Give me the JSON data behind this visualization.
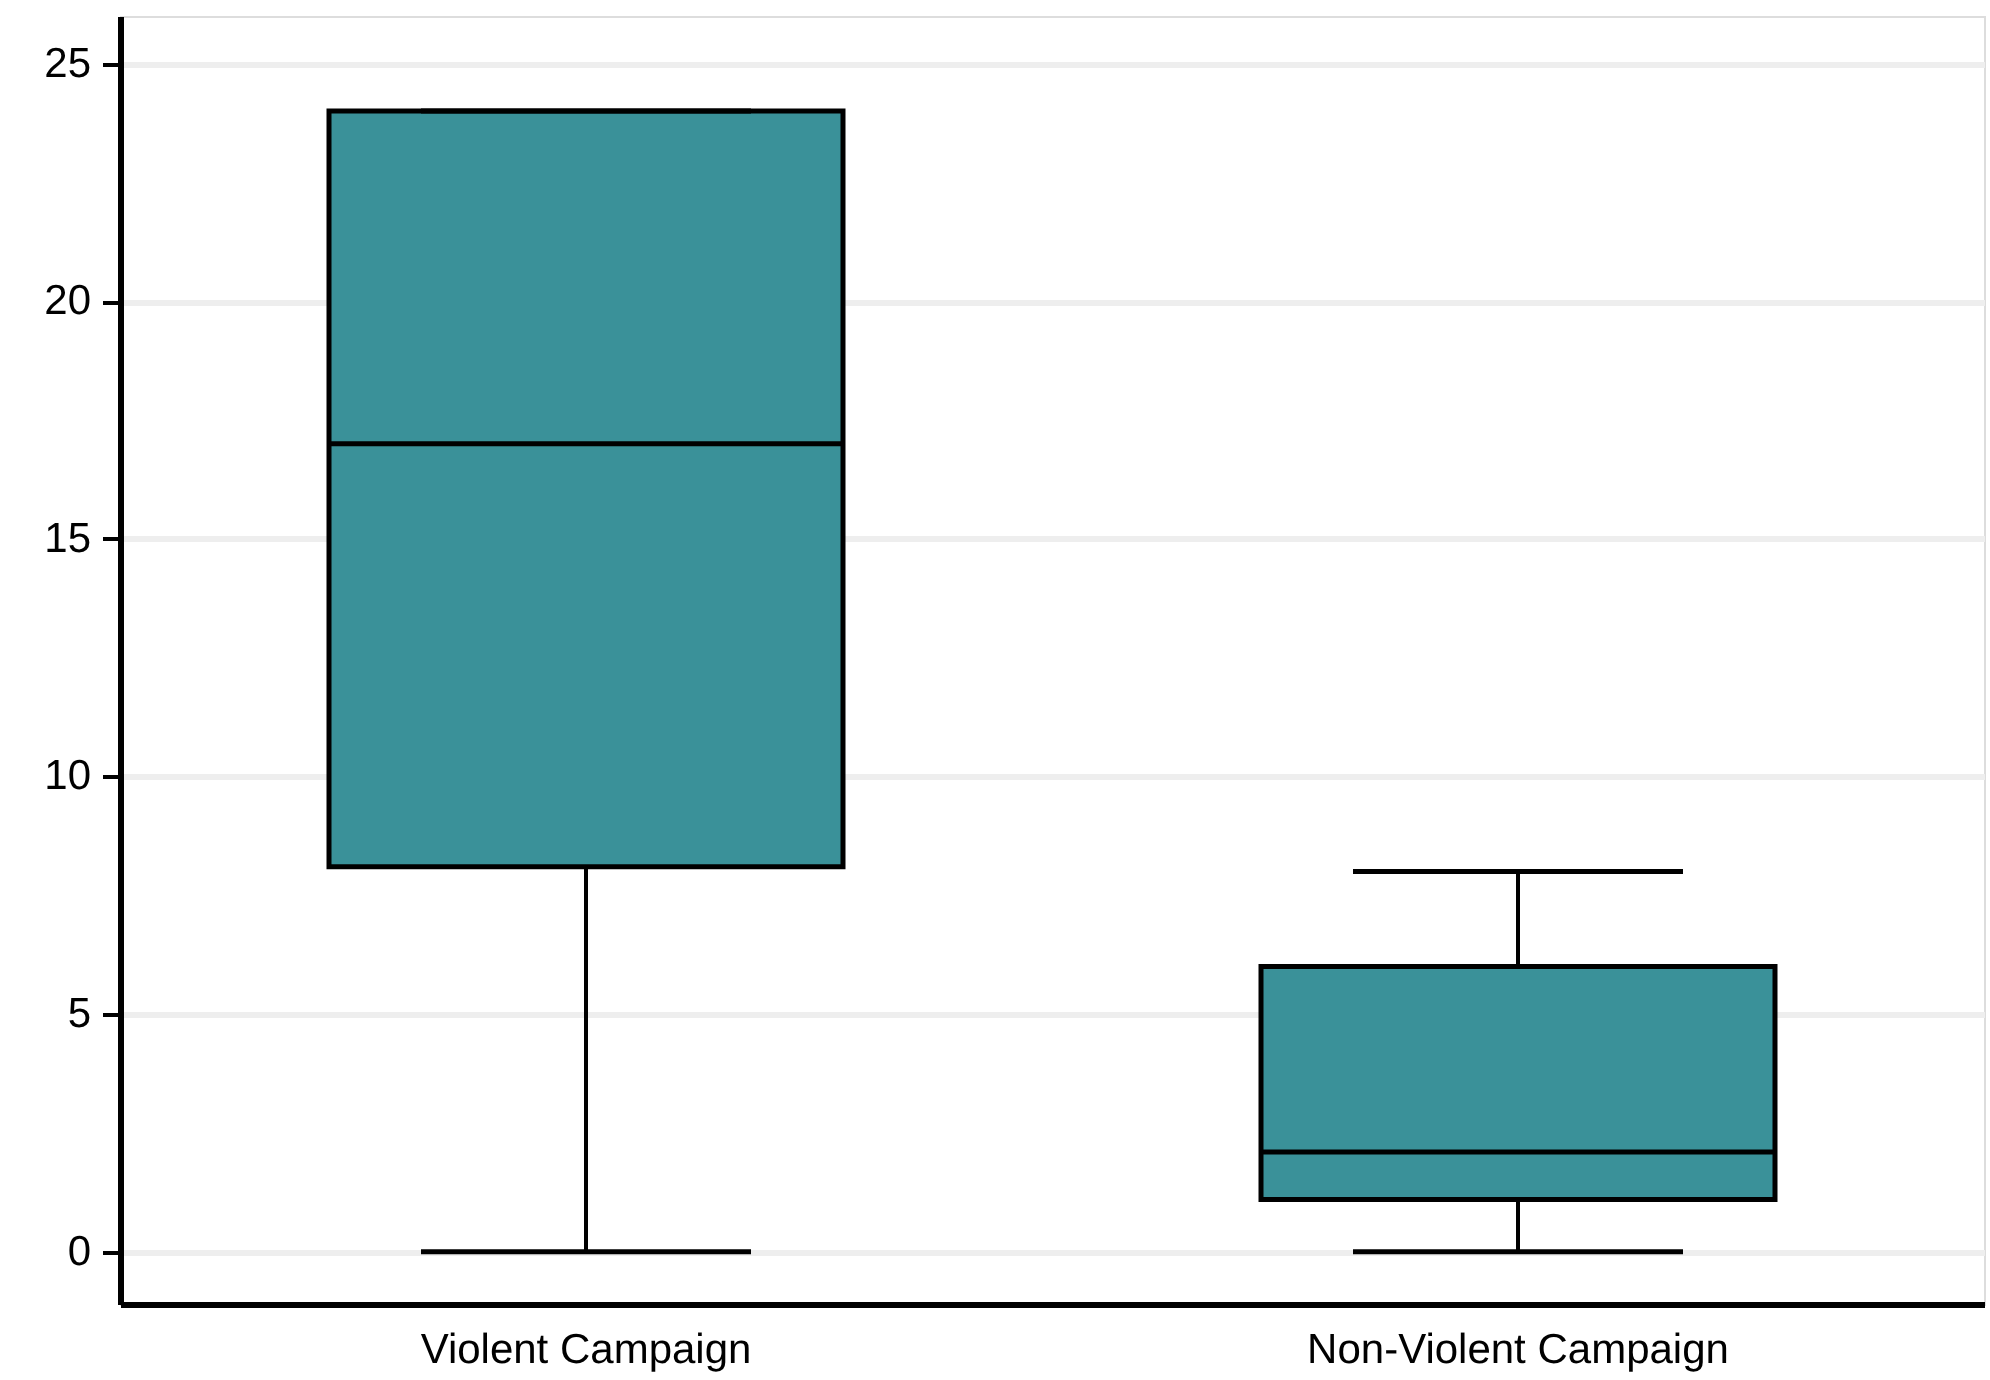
{
  "chart_data": {
    "type": "box",
    "categories": [
      "Violent Campaign",
      "Non-Violent Campaign"
    ],
    "color": "#3a9199",
    "boxes": [
      {
        "low": 0,
        "q1": 8.1,
        "median": 17,
        "q3": 24,
        "high": 24
      },
      {
        "low": 0,
        "q1": 1.1,
        "median": 2.1,
        "q3": 6,
        "high": 8
      }
    ],
    "ylim": [
      -1.1,
      26
    ],
    "yticks": [
      0,
      5,
      10,
      15,
      20,
      25
    ],
    "grid": "y"
  }
}
